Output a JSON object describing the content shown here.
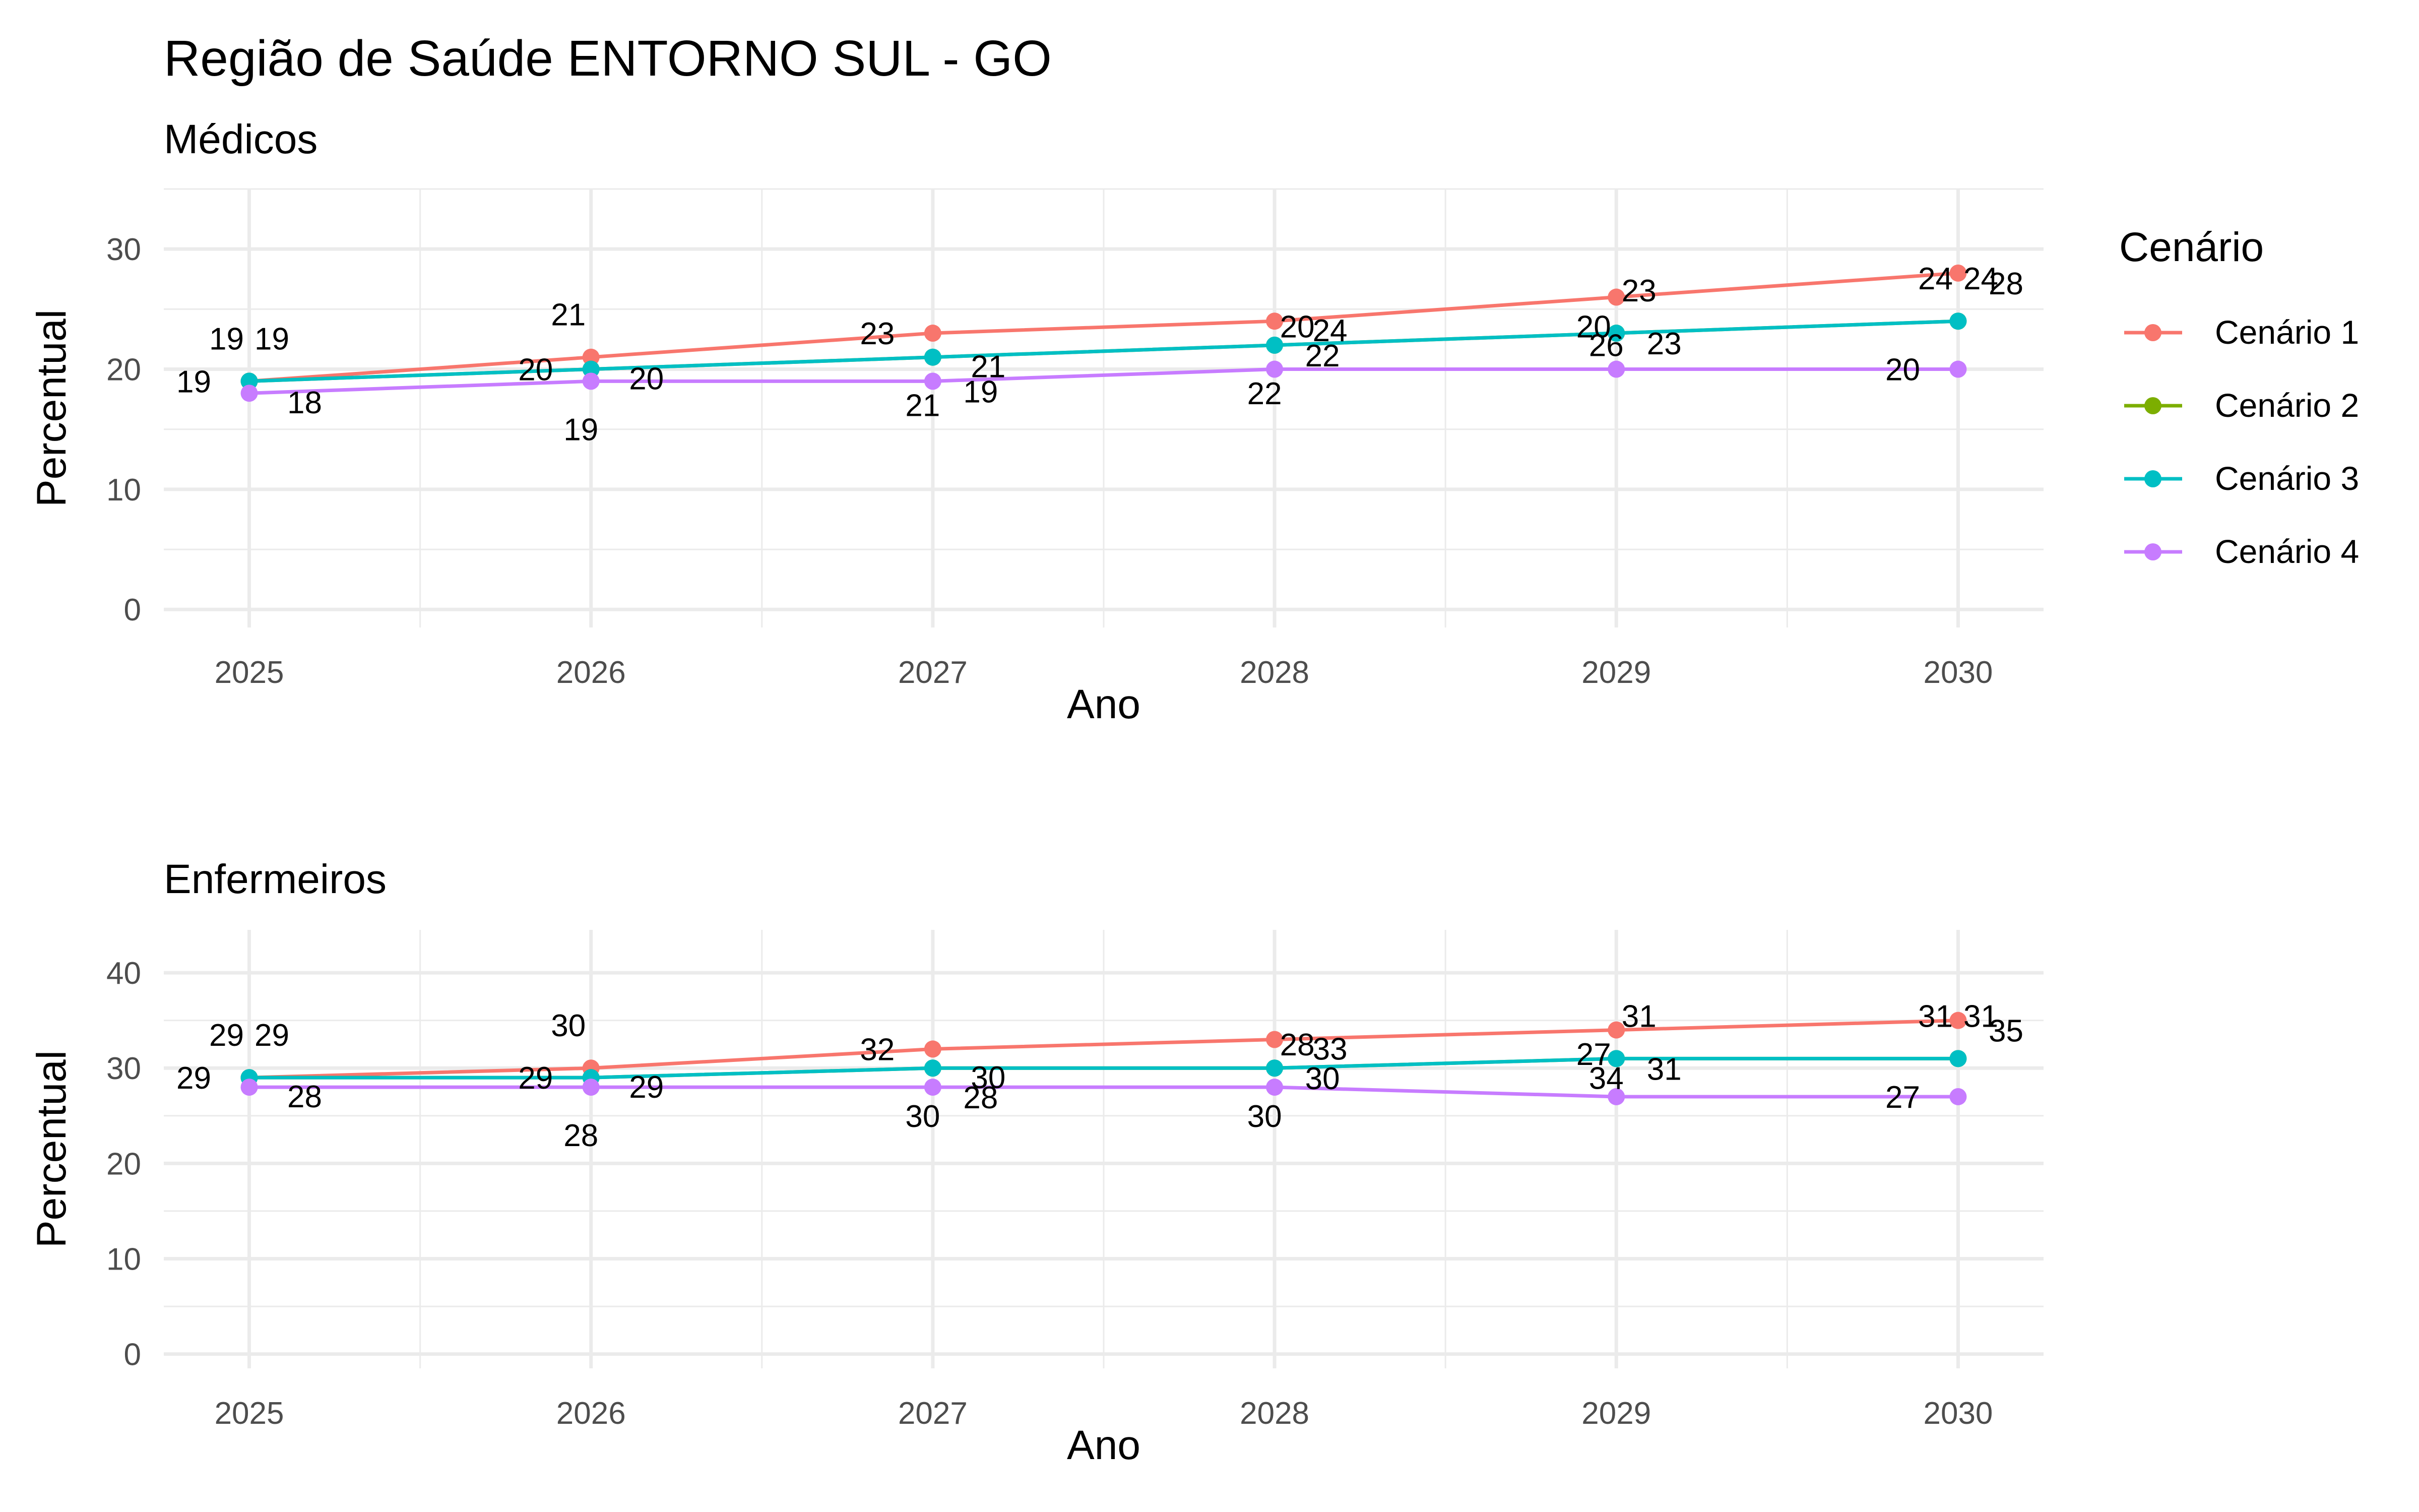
{
  "title": "Região de Saúde ENTORNO SUL - GO",
  "legend": {
    "title": "Cenário",
    "placement": "right",
    "entries": [
      {
        "label": "Cenário 1",
        "color": "#F8766D"
      },
      {
        "label": "Cenário 2",
        "color": "#7CAE00"
      },
      {
        "label": "Cenário 3",
        "color": "#00BFC4"
      },
      {
        "label": "Cenário 4",
        "color": "#C77CFF"
      }
    ]
  },
  "chart_data": [
    {
      "type": "line",
      "subtitle": "Médicos",
      "xlabel": "Ano",
      "ylabel": "Percentual",
      "x": [
        2025,
        2026,
        2027,
        2028,
        2029,
        2030
      ],
      "xticks": [
        "2025",
        "2026",
        "2027",
        "2028",
        "2029",
        "2030"
      ],
      "yticks": [
        "0",
        "10",
        "20",
        "30"
      ],
      "xlim": [
        2024.75,
        2030.25
      ],
      "ylim": [
        -1.5,
        35
      ],
      "grid": true,
      "series": [
        {
          "name": "Cenário 1",
          "color": "#F8766D",
          "values": [
            19,
            21,
            23,
            24,
            26,
            28
          ]
        },
        {
          "name": "Cenário 2",
          "color": "#7CAE00",
          "values": [
            19,
            20,
            21,
            22,
            23,
            24
          ]
        },
        {
          "name": "Cenário 3",
          "color": "#00BFC4",
          "values": [
            19,
            20,
            21,
            22,
            23,
            24
          ]
        },
        {
          "name": "Cenário 4",
          "color": "#C77CFF",
          "values": [
            18,
            19,
            19,
            20,
            20,
            20
          ]
        }
      ]
    },
    {
      "type": "line",
      "subtitle": "Enfermeiros",
      "xlabel": "Ano",
      "ylabel": "Percentual",
      "x": [
        2025,
        2026,
        2027,
        2028,
        2029,
        2030
      ],
      "xticks": [
        "2025",
        "2026",
        "2027",
        "2028",
        "2029",
        "2030"
      ],
      "yticks": [
        "0",
        "10",
        "20",
        "30",
        "40"
      ],
      "xlim": [
        2024.75,
        2030.25
      ],
      "ylim": [
        -1.5,
        44.5
      ],
      "grid": true,
      "series": [
        {
          "name": "Cenário 1",
          "color": "#F8766D",
          "values": [
            29,
            30,
            32,
            33,
            34,
            35
          ]
        },
        {
          "name": "Cenário 2",
          "color": "#7CAE00",
          "values": [
            29,
            29,
            30,
            30,
            31,
            31
          ]
        },
        {
          "name": "Cenário 3",
          "color": "#00BFC4",
          "values": [
            29,
            29,
            30,
            30,
            31,
            31
          ]
        },
        {
          "name": "Cenário 4",
          "color": "#C77CFF",
          "values": [
            28,
            28,
            28,
            28,
            27,
            27
          ]
        }
      ]
    }
  ]
}
